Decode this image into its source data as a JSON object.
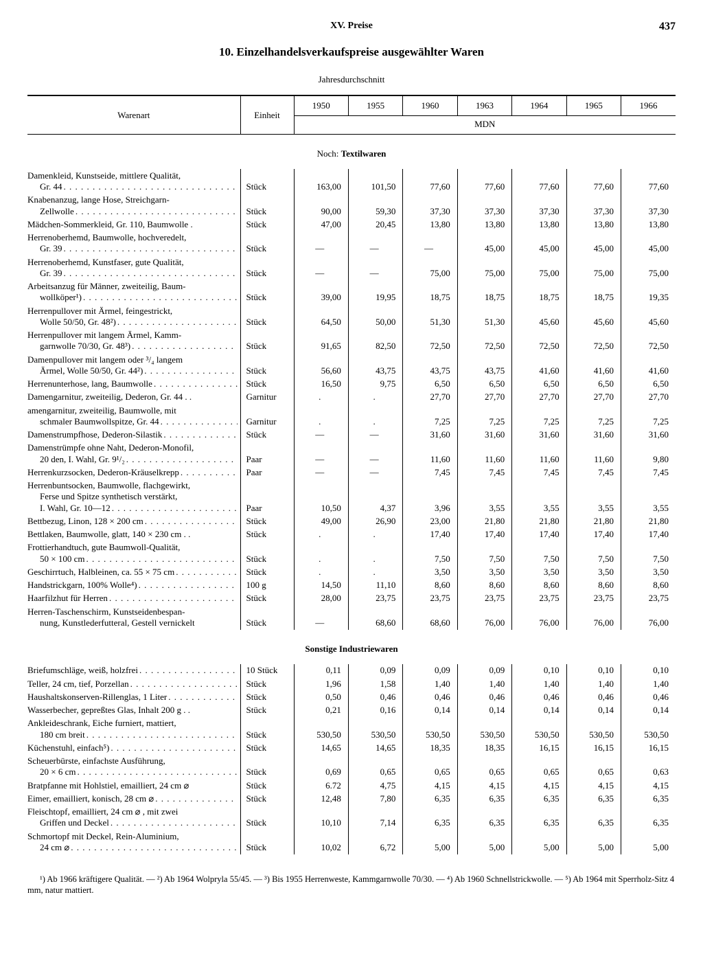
{
  "page": {
    "chapter": "XV. Preise",
    "number": "437"
  },
  "title": "10. Einzelhandelsverkaufspreise ausgewählter Waren",
  "subtitle": "Jahresdurchschnitt",
  "columns": {
    "name": "Warenart",
    "unit": "Einheit",
    "years": [
      "1950",
      "1955",
      "1960",
      "1963",
      "1964",
      "1965",
      "1966"
    ],
    "currency": "MDN"
  },
  "sections": [
    {
      "prefix": "Noch: ",
      "title": "Textilwaren",
      "rows": [
        {
          "name_lines": [
            "Damenkleid, Kunstseide, mittlere Qualität,",
            "Gr. 44"
          ],
          "dots": true,
          "unit": "Stück",
          "values": [
            "163,00",
            "101,50",
            "77,60",
            "77,60",
            "77,60",
            "77,60",
            "77,60"
          ]
        },
        {
          "name_lines": [
            "Knabenanzug, lange Hose, Streichgarn-",
            "Zellwolle"
          ],
          "dots": true,
          "unit": "Stück",
          "values": [
            "90,00",
            "59,30",
            "37,30",
            "37,30",
            "37,30",
            "37,30",
            "37,30"
          ]
        },
        {
          "name_lines": [
            "Mädchen-Sommerkleid, Gr. 110, Baumwolle ."
          ],
          "unit": "Stück",
          "values": [
            "47,00",
            "20,45",
            "13,80",
            "13,80",
            "13,80",
            "13,80",
            "13,80"
          ]
        },
        {
          "name_lines": [
            "Herrenoberhemd, Baumwolle, hochveredelt,",
            "Gr. 39"
          ],
          "dots": true,
          "unit": "Stück",
          "values": [
            "—",
            "—",
            "—",
            "45,00",
            "45,00",
            "45,00",
            "45,00"
          ]
        },
        {
          "name_lines": [
            "Herrenoberhemd, Kunstfaser, gute Qualität,",
            "Gr. 39"
          ],
          "dots": true,
          "unit": "Stück",
          "values": [
            "—",
            "—",
            "75,00",
            "75,00",
            "75,00",
            "75,00",
            "75,00"
          ]
        },
        {
          "name_lines": [
            "Arbeitsanzug für Männer, zweiteilig, Baum-",
            "wollköper¹)"
          ],
          "dots": true,
          "unit": "Stück",
          "values": [
            "39,00",
            "19,95",
            "18,75",
            "18,75",
            "18,75",
            "18,75",
            "19,35"
          ]
        },
        {
          "name_lines": [
            "Herrenpullover mit Ärmel, feingestrickt,",
            "Wolle 50/50, Gr. 48²)"
          ],
          "dots": true,
          "unit": "Stück",
          "values": [
            "64,50",
            "50,00",
            "51,30",
            "51,30",
            "45,60",
            "45,60",
            "45,60"
          ]
        },
        {
          "name_lines": [
            "Herrenpullover mit langem Ärmel, Kamm-",
            "garnwolle 70/30, Gr. 48³)"
          ],
          "dots": true,
          "unit": "Stück",
          "values": [
            "91,65",
            "82,50",
            "72,50",
            "72,50",
            "72,50",
            "72,50",
            "72,50"
          ]
        },
        {
          "name_lines": [
            "Damenpullover mit langem oder ³/₄ langem",
            "Ärmel, Wolle 50/50, Gr. 44²)"
          ],
          "dots": true,
          "unit": "Stück",
          "values": [
            "56,60",
            "43,75",
            "43,75",
            "43,75",
            "41,60",
            "41,60",
            "41,60"
          ]
        },
        {
          "name_lines": [
            "Herrenunterhose, lang, Baumwolle"
          ],
          "dots": true,
          "unit": "Stück",
          "values": [
            "16,50",
            "9,75",
            "6,50",
            "6,50",
            "6,50",
            "6,50",
            "6,50"
          ]
        },
        {
          "name_lines": [
            "Damengarnitur, zweiteilig, Dederon, Gr. 44 . ."
          ],
          "unit": "Garnitur",
          "values": [
            ".",
            ".",
            "27,70",
            "27,70",
            "27,70",
            "27,70",
            "27,70"
          ]
        },
        {
          "name_lines": [
            "amengarnitur, zweiteilig, Baumwolle, mit",
            "schmaler Baumwollspitze, Gr. 44"
          ],
          "dots": true,
          "unit": "Garnitur",
          "values": [
            ".",
            ".",
            "7,25",
            "7,25",
            "7,25",
            "7,25",
            "7,25"
          ]
        },
        {
          "name_lines": [
            "Damenstrumpfhose, Dederon-Silastik"
          ],
          "dots": true,
          "unit": "Stück",
          "values": [
            "—",
            "—",
            "31,60",
            "31,60",
            "31,60",
            "31,60",
            "31,60"
          ]
        },
        {
          "name_lines": [
            "Damenstrümpfe ohne Naht, Dederon-Monofil,",
            "20 den, I. Wahl, Gr. 9¹/₂"
          ],
          "dots": true,
          "unit": "Paar",
          "values": [
            "—",
            "—",
            "11,60",
            "11,60",
            "11,60",
            "11,60",
            "9,80"
          ]
        },
        {
          "name_lines": [
            "Herrenkurzsocken, Dederon-Kräuselkrepp"
          ],
          "dots": true,
          "unit": "Paar",
          "values": [
            "—",
            "—",
            "7,45",
            "7,45",
            "7,45",
            "7,45",
            "7,45"
          ]
        },
        {
          "name_lines": [
            "Herrenbuntsocken, Baumwolle, flachgewirkt,",
            "Ferse und Spitze synthetisch verstärkt,",
            "I. Wahl, Gr. 10—12"
          ],
          "dots": true,
          "unit": "Paar",
          "values": [
            "10,50",
            "4,37",
            "3,96",
            "3,55",
            "3,55",
            "3,55",
            "3,55"
          ]
        },
        {
          "name_lines": [
            "Bettbezug, Linon, 128 × 200 cm"
          ],
          "dots": true,
          "unit": "Stück",
          "values": [
            "49,00",
            "26,90",
            "23,00",
            "21,80",
            "21,80",
            "21,80",
            "21,80"
          ]
        },
        {
          "name_lines": [
            "Bettlaken, Baumwolle, glatt, 140 × 230 cm . ."
          ],
          "unit": "Stück",
          "values": [
            ".",
            ".",
            "17,40",
            "17,40",
            "17,40",
            "17,40",
            "17,40"
          ]
        },
        {
          "name_lines": [
            "Frottierhandtuch, gute Baumwoll-Qualität,",
            "50 × 100 cm"
          ],
          "dots": true,
          "unit": "Stück",
          "values": [
            ".",
            ".",
            "7,50",
            "7,50",
            "7,50",
            "7,50",
            "7,50"
          ]
        },
        {
          "name_lines": [
            "Geschirrtuch, Halbleinen, ca. 55 × 75 cm"
          ],
          "dots": true,
          "unit": "Stück",
          "values": [
            ".",
            ".",
            "3,50",
            "3,50",
            "3,50",
            "3,50",
            "3,50"
          ]
        },
        {
          "name_lines": [
            "Handstrickgarn, 100% Wolle⁴)"
          ],
          "dots": true,
          "unit": "100 g",
          "values": [
            "14,50",
            "11,10",
            "8,60",
            "8,60",
            "8,60",
            "8,60",
            "8,60"
          ]
        },
        {
          "name_lines": [
            "Haarfilzhut für Herren"
          ],
          "dots": true,
          "unit": "Stück",
          "values": [
            "28,00",
            "23,75",
            "23,75",
            "23,75",
            "23,75",
            "23,75",
            "23,75"
          ]
        },
        {
          "name_lines": [
            "Herren-Taschenschirm, Kunstseidenbespan-",
            "nung, Kunstlederfutteral, Gestell vernickelt"
          ],
          "unit": "Stück",
          "values": [
            "—",
            "68,60",
            "68,60",
            "76,00",
            "76,00",
            "76,00",
            "76,00"
          ]
        }
      ]
    },
    {
      "prefix": "",
      "title": "Sonstige Industriewaren",
      "rows": [
        {
          "name_lines": [
            "Briefumschläge, weiß, holzfrei"
          ],
          "dots": true,
          "unit": "10 Stück",
          "values": [
            "0,11",
            "0,09",
            "0,09",
            "0,09",
            "0,10",
            "0,10",
            "0,10"
          ]
        },
        {
          "name_lines": [
            "Teller, 24 cm, tief, Porzellan"
          ],
          "dots": true,
          "unit": "Stück",
          "values": [
            "1,96",
            "1,58",
            "1,40",
            "1,40",
            "1,40",
            "1,40",
            "1,40"
          ]
        },
        {
          "name_lines": [
            "Haushaltskonserven-Rillenglas, 1 Liter"
          ],
          "dots": true,
          "unit": "Stück",
          "values": [
            "0,50",
            "0,46",
            "0,46",
            "0,46",
            "0,46",
            "0,46",
            "0,46"
          ]
        },
        {
          "name_lines": [
            "Wasserbecher, gepreßtes Glas, Inhalt 200 g . ."
          ],
          "unit": "Stück",
          "values": [
            "0,21",
            "0,16",
            "0,14",
            "0,14",
            "0,14",
            "0,14",
            "0,14"
          ]
        },
        {
          "name_lines": [
            "Ankleideschrank, Eiche furniert, mattiert,",
            "180 cm breit"
          ],
          "dots": true,
          "unit": "Stück",
          "values": [
            "530,50",
            "530,50",
            "530,50",
            "530,50",
            "530,50",
            "530,50",
            "530,50"
          ]
        },
        {
          "name_lines": [
            "Küchenstuhl, einfach⁵)"
          ],
          "dots": true,
          "unit": "Stück",
          "values": [
            "14,65",
            "14,65",
            "18,35",
            "18,35",
            "16,15",
            "16,15",
            "16,15"
          ]
        },
        {
          "name_lines": [
            "Scheuerbürste, einfachste Ausführung,",
            "20 × 6 cm"
          ],
          "dots": true,
          "unit": "Stück",
          "values": [
            "0,69",
            "0,65",
            "0,65",
            "0,65",
            "0,65",
            "0,65",
            "0,63"
          ]
        },
        {
          "name_lines": [
            "Bratpfanne mit Hohlstiel, emailliert, 24 cm ⌀"
          ],
          "unit": "Stück",
          "values": [
            "6.72",
            "4,75",
            "4,15",
            "4,15",
            "4,15",
            "4,15",
            "4,15"
          ]
        },
        {
          "name_lines": [
            "Eimer, emailliert, konisch, 28 cm ⌀"
          ],
          "dots": true,
          "unit": "Stück",
          "values": [
            "12,48",
            "7,80",
            "6,35",
            "6,35",
            "6,35",
            "6,35",
            "6,35"
          ]
        },
        {
          "name_lines": [
            "Fleischtopf, emailliert, 24 cm ⌀ , mit zwei",
            "Griffen und Deckel"
          ],
          "dots": true,
          "unit": "Stück",
          "values": [
            "10,10",
            "7,14",
            "6,35",
            "6,35",
            "6,35",
            "6,35",
            "6,35"
          ]
        },
        {
          "name_lines": [
            "Schmortopf mit Deckel, Rein-Aluminium,",
            "24 cm ⌀"
          ],
          "dots": true,
          "unit": "Stück",
          "values": [
            "10,02",
            "6,72",
            "5,00",
            "5,00",
            "5,00",
            "5,00",
            "5,00"
          ]
        }
      ]
    }
  ],
  "footnotes": "¹) Ab 1966 kräftigere Qualität. — ²) Ab 1964 Wolpryla 55/45. — ³) Bis 1955 Herrenweste, Kammgarnwolle 70/30. — ⁴) Ab 1960 Schnellstrickwolle. — ⁵) Ab 1964 mit Sperrholz-Sitz 4 mm, natur mattiert."
}
